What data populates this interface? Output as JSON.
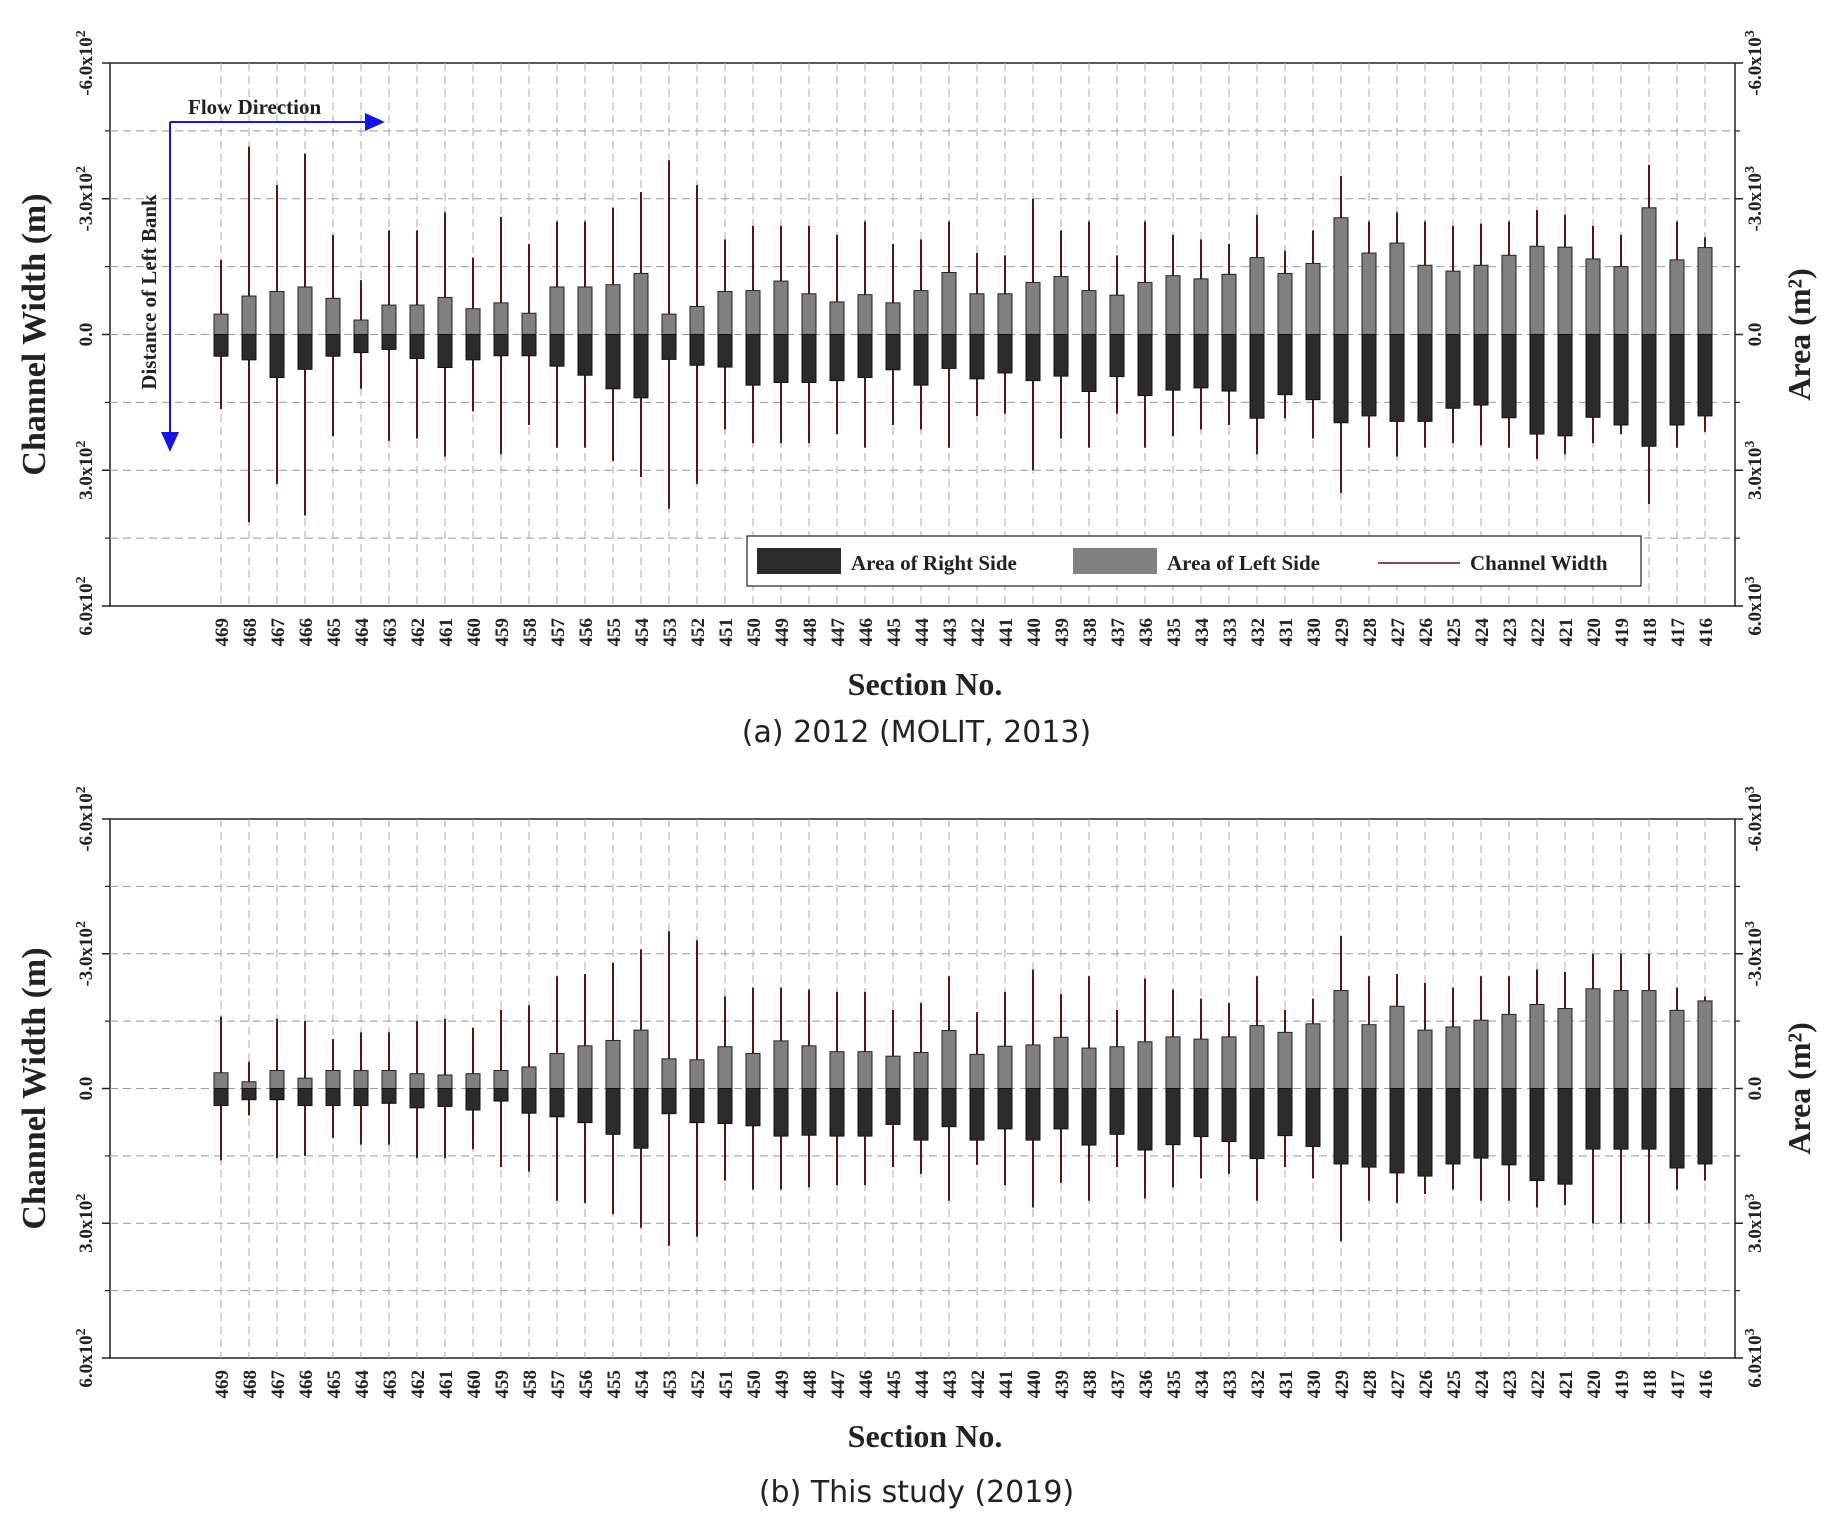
{
  "chart_data": [
    {
      "type": "bar",
      "caption": "(a) 2012 (MOLIT, 2013)",
      "xlabel": "Section No.",
      "ylabel": "Channel Width (m)",
      "ylabel2": "Area (m²)",
      "ylim": [
        -600,
        600
      ],
      "ylim2": [
        -6000,
        6000
      ],
      "y_ticks": [
        "-6.0x10²",
        "-3.0x10²",
        "0.0",
        "3.0x10²",
        "6.0x10²"
      ],
      "y2_ticks": [
        "-6.0x10³",
        "-3.0x10³",
        "0.0",
        "3.0x10³",
        "6.0x10³"
      ],
      "grid": true,
      "legend": [
        "Area of Right Side",
        "Area of Left Side",
        "Channel Width"
      ],
      "legend_position": "bottom-right",
      "annotations": {
        "flow": "Flow Direction",
        "distance": "Distance of Left Bank"
      },
      "categories": [
        "469",
        "468",
        "467",
        "466",
        "465",
        "464",
        "463",
        "462",
        "461",
        "460",
        "459",
        "458",
        "457",
        "456",
        "455",
        "454",
        "453",
        "452",
        "451",
        "450",
        "449",
        "448",
        "447",
        "446",
        "445",
        "444",
        "443",
        "442",
        "441",
        "440",
        "439",
        "438",
        "437",
        "436",
        "435",
        "434",
        "433",
        "432",
        "431",
        "430",
        "429",
        "428",
        "427",
        "426",
        "425",
        "424",
        "423",
        "422",
        "421",
        "420",
        "419",
        "418",
        "417",
        "416"
      ],
      "series": [
        {
          "name": "Area of Left Side",
          "values": [
            -450,
            -850,
            -950,
            -1050,
            -800,
            -320,
            -650,
            -650,
            -820,
            -570,
            -700,
            -470,
            -1050,
            -1050,
            -1100,
            -1350,
            -450,
            -620,
            -950,
            -970,
            -1180,
            -900,
            -720,
            -880,
            -700,
            -970,
            -1370,
            -900,
            -900,
            -1150,
            -1280,
            -970,
            -870,
            -1150,
            -1300,
            -1230,
            -1330,
            -1700,
            -1350,
            -1570,
            -2580,
            -1800,
            -2020,
            -1530,
            -1400,
            -1530,
            -1750,
            -1950,
            -1930,
            -1670,
            -1500,
            -2800,
            -1650,
            -1920
          ]
        },
        {
          "name": "Area of Right Side",
          "values": [
            480,
            560,
            950,
            770,
            480,
            400,
            330,
            530,
            730,
            560,
            470,
            470,
            700,
            900,
            1200,
            1400,
            550,
            680,
            720,
            1120,
            1060,
            1060,
            1020,
            950,
            780,
            1120,
            750,
            980,
            850,
            1020,
            920,
            1260,
            930,
            1350,
            1230,
            1180,
            1250,
            1850,
            1330,
            1440,
            1950,
            1800,
            1920,
            1920,
            1630,
            1560,
            1840,
            2200,
            2240,
            1830,
            2000,
            2470,
            2000,
            1800
          ]
        },
        {
          "name": "Channel Width",
          "min": [
            -165,
            -415,
            -330,
            -400,
            -220,
            -120,
            -230,
            -230,
            -270,
            -170,
            -260,
            -200,
            -250,
            -250,
            -280,
            -315,
            -385,
            -330,
            -210,
            -240,
            -240,
            -240,
            -220,
            -250,
            -200,
            -210,
            -250,
            -180,
            -175,
            -300,
            -230,
            -250,
            -175,
            -250,
            -220,
            -210,
            -200,
            -265,
            -185,
            -230,
            -350,
            -250,
            -270,
            -250,
            -240,
            -245,
            -250,
            -275,
            -265,
            -240,
            -220,
            -375,
            -250,
            -215
          ],
          "max": [
            165,
            415,
            330,
            400,
            225,
            120,
            235,
            230,
            270,
            170,
            265,
            200,
            250,
            250,
            280,
            315,
            385,
            330,
            210,
            240,
            240,
            240,
            220,
            250,
            200,
            210,
            250,
            180,
            175,
            300,
            230,
            250,
            175,
            250,
            225,
            210,
            200,
            265,
            185,
            230,
            350,
            250,
            270,
            250,
            240,
            245,
            250,
            275,
            265,
            240,
            220,
            375,
            250,
            215
          ]
        }
      ]
    },
    {
      "type": "bar",
      "caption": "(b) This study (2019)",
      "xlabel": "Section No.",
      "ylabel": "Channel Width (m)",
      "ylabel2": "Area (m²)",
      "ylim": [
        -600,
        600
      ],
      "ylim2": [
        -6000,
        6000
      ],
      "y_ticks": [
        "-6.0x10²",
        "-3.0x10²",
        "0.0",
        "3.0x10²",
        "6.0x10²"
      ],
      "y2_ticks": [
        "-6.0x10³",
        "-3.0x10³",
        "0.0",
        "3.0x10³",
        "6.0x10³"
      ],
      "grid": true,
      "categories": [
        "469",
        "468",
        "467",
        "466",
        "465",
        "464",
        "463",
        "462",
        "461",
        "460",
        "459",
        "458",
        "457",
        "456",
        "455",
        "454",
        "453",
        "452",
        "451",
        "450",
        "449",
        "448",
        "447",
        "446",
        "445",
        "444",
        "443",
        "442",
        "441",
        "440",
        "439",
        "438",
        "437",
        "436",
        "435",
        "434",
        "433",
        "432",
        "431",
        "430",
        "429",
        "428",
        "427",
        "426",
        "425",
        "424",
        "423",
        "422",
        "421",
        "420",
        "419",
        "418",
        "417",
        "416"
      ],
      "series": [
        {
          "name": "Area of Left Side",
          "values": [
            -350,
            -150,
            -400,
            -230,
            -400,
            -400,
            -400,
            -330,
            -300,
            -330,
            -400,
            -480,
            -780,
            -950,
            -1070,
            -1300,
            -660,
            -640,
            -930,
            -780,
            -1060,
            -950,
            -820,
            -820,
            -720,
            -800,
            -1290,
            -760,
            -940,
            -970,
            -1140,
            -900,
            -930,
            -1040,
            -1150,
            -1100,
            -1150,
            -1400,
            -1250,
            -1440,
            -2180,
            -1420,
            -1830,
            -1300,
            -1370,
            -1520,
            -1650,
            -1870,
            -1780,
            -2220,
            -2180,
            -2180,
            -1740,
            -1950
          ]
        },
        {
          "name": "Area of Right Side",
          "values": [
            380,
            250,
            250,
            380,
            380,
            380,
            330,
            430,
            400,
            480,
            280,
            550,
            630,
            760,
            1020,
            1330,
            560,
            760,
            780,
            830,
            1060,
            1040,
            1060,
            1060,
            800,
            1150,
            850,
            1150,
            900,
            1150,
            900,
            1260,
            1020,
            1370,
            1250,
            1070,
            1180,
            1560,
            1050,
            1290,
            1680,
            1750,
            1880,
            1950,
            1680,
            1550,
            1700,
            2050,
            2130,
            1350,
            1350,
            1350,
            1770,
            1680
          ]
        },
        {
          "name": "Channel Width",
          "min": [
            -160,
            -60,
            -155,
            -150,
            -110,
            -125,
            -125,
            -150,
            -155,
            -135,
            -175,
            -185,
            -250,
            -255,
            -280,
            -310,
            -350,
            -330,
            -205,
            -225,
            -225,
            -220,
            -215,
            -215,
            -175,
            -190,
            -250,
            -170,
            -215,
            -265,
            -210,
            -250,
            -175,
            -245,
            -220,
            -200,
            -190,
            -250,
            -175,
            -200,
            -340,
            -250,
            -255,
            -235,
            -225,
            -250,
            -250,
            -265,
            -260,
            -300,
            -300,
            -300,
            -225,
            -205
          ],
          "max": [
            160,
            60,
            155,
            150,
            110,
            125,
            125,
            155,
            155,
            135,
            175,
            185,
            250,
            255,
            280,
            310,
            350,
            330,
            205,
            225,
            225,
            220,
            215,
            215,
            175,
            190,
            250,
            170,
            215,
            265,
            210,
            250,
            175,
            245,
            220,
            200,
            190,
            250,
            175,
            200,
            340,
            250,
            255,
            235,
            225,
            250,
            250,
            265,
            260,
            300,
            300,
            300,
            225,
            205
          ]
        }
      ]
    }
  ]
}
